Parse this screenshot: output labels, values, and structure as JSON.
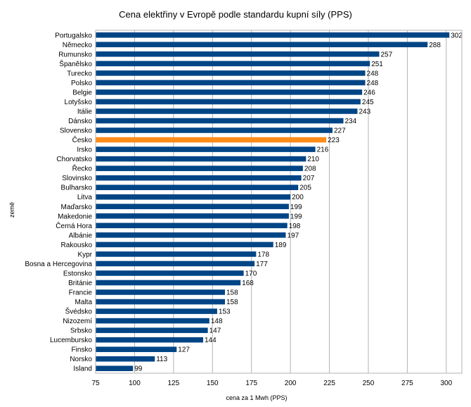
{
  "chart_data": {
    "type": "bar",
    "orientation": "horizontal",
    "title": "Cena elektřiny v Evropě podle standardu kupní síly (PPS)",
    "xlabel": "cena za 1 Mwh (PPS)",
    "ylabel": "země",
    "xlim": [
      75,
      310
    ],
    "xticks": [
      75,
      100,
      125,
      150,
      175,
      200,
      225,
      250,
      275,
      300
    ],
    "grid": "vertical",
    "legend": "none",
    "colors": {
      "default": "#004586",
      "highlight": "#ff8c1a",
      "grid": "#b3b3b3"
    },
    "highlight_category": "Česko",
    "categories": [
      "Portugalsko",
      "Německo",
      "Rumunsko",
      "Španělsko",
      "Turecko",
      "Polsko",
      "Belgie",
      "Lotyšsko",
      "Itálie",
      "Dánsko",
      "Slovensko",
      "Česko",
      "Irsko",
      "Chorvatsko",
      "Řecko",
      "Slovinsko",
      "Bulharsko",
      "Litva",
      "Maďarsko",
      "Makedonie",
      "Černá Hora",
      "Albánie",
      "Rakousko",
      "Kypr",
      "Bosna a Hercegovina",
      "Estonsko",
      "Británie",
      "Francie",
      "Malta",
      "Švédsko",
      "Nizozemí",
      "Srbsko",
      "Lucembursko",
      "Finsko",
      "Norsko",
      "Island"
    ],
    "values": [
      302,
      288,
      257,
      251,
      248,
      248,
      246,
      245,
      243,
      234,
      227,
      223,
      216,
      210,
      208,
      207,
      205,
      200,
      199,
      199,
      198,
      197,
      189,
      178,
      177,
      170,
      168,
      158,
      158,
      153,
      148,
      147,
      144,
      127,
      113,
      99
    ]
  }
}
